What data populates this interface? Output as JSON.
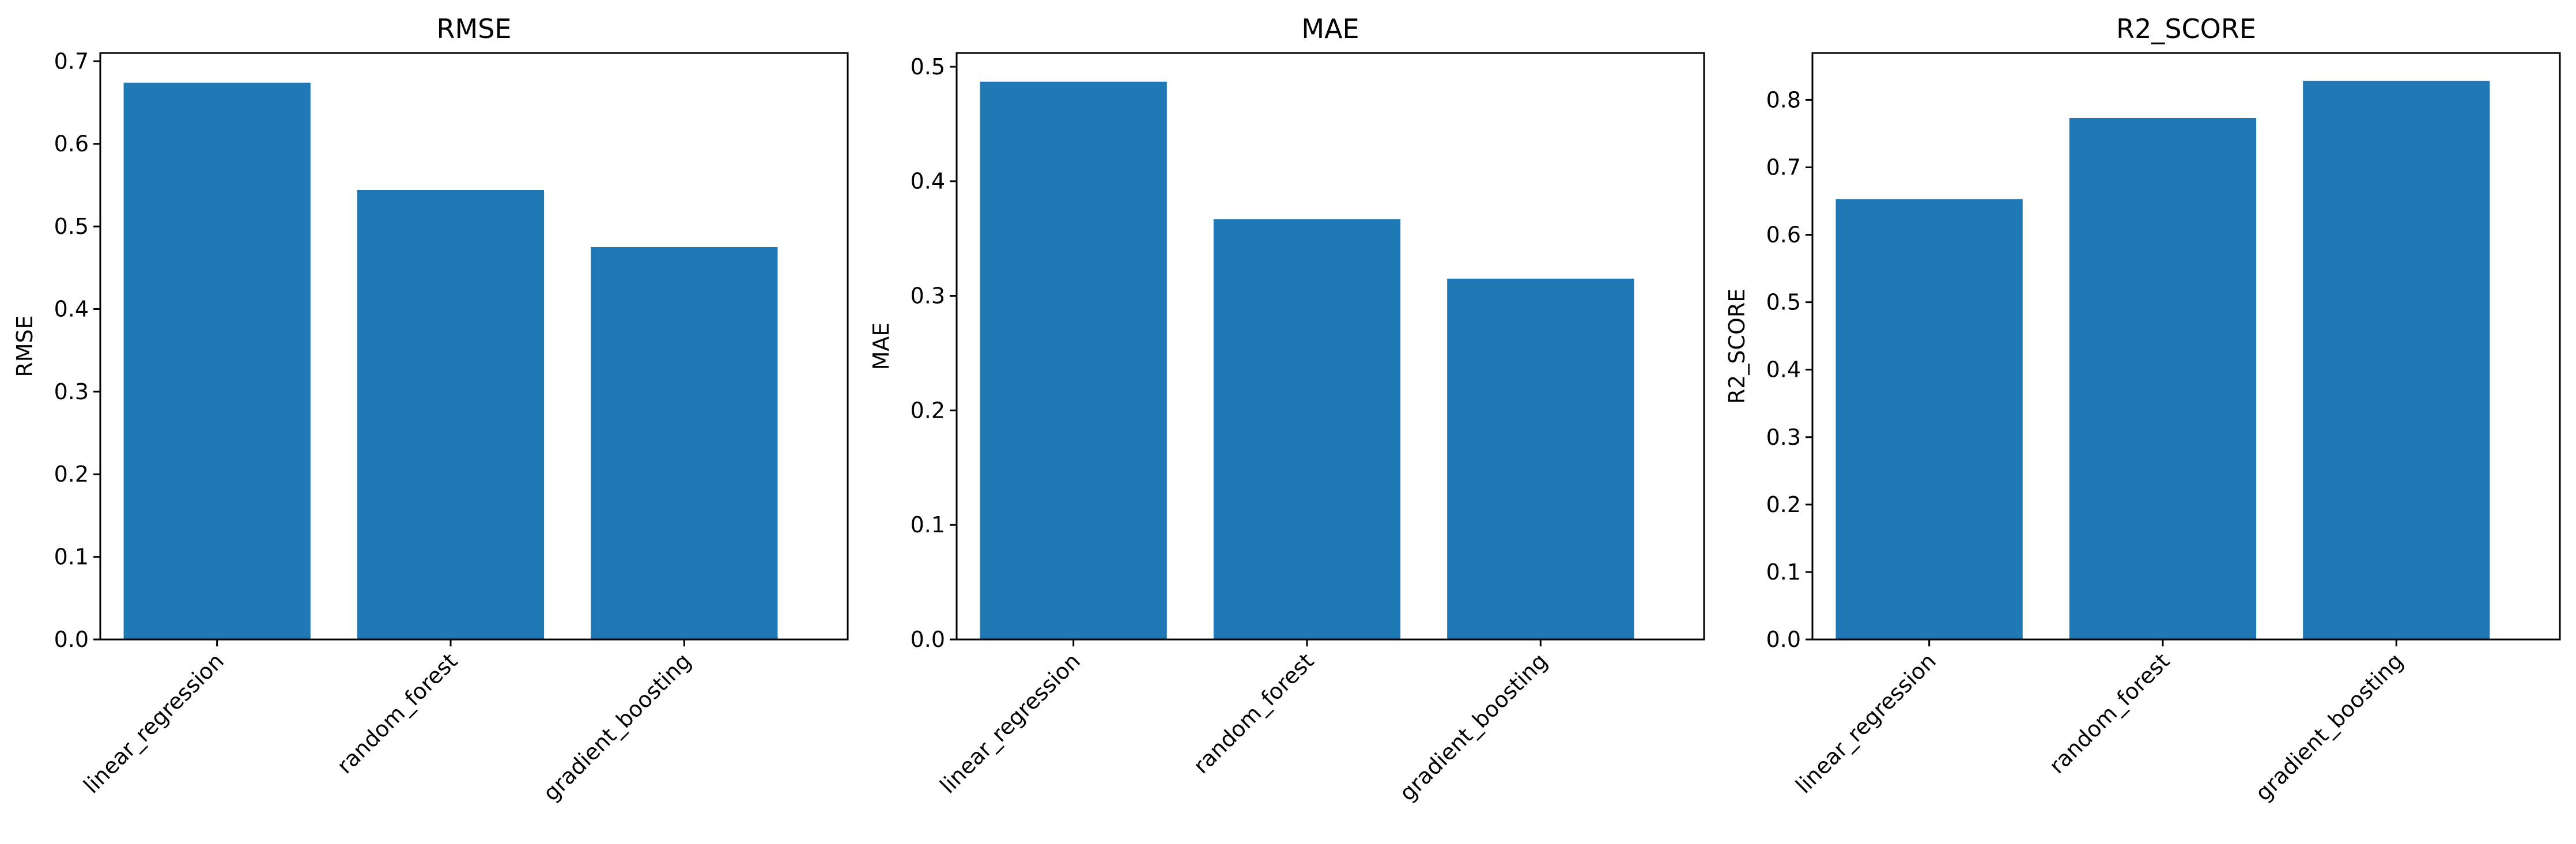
{
  "chart_data": [
    {
      "type": "bar",
      "title": "RMSE",
      "ylabel": "RMSE",
      "xlabel": "",
      "categories": [
        "linear_regression",
        "random_forest",
        "gradient_boosting"
      ],
      "values": [
        0.674,
        0.544,
        0.475
      ],
      "ylim": [
        0,
        0.71
      ],
      "yticks": [
        0.0,
        0.1,
        0.2,
        0.3,
        0.4,
        0.5,
        0.6,
        0.7
      ],
      "ytick_labels": [
        "0.0",
        "0.1",
        "0.2",
        "0.3",
        "0.4",
        "0.5",
        "0.6",
        "0.7"
      ],
      "bar_color": "#1f77b4",
      "grid": false
    },
    {
      "type": "bar",
      "title": "MAE",
      "ylabel": "MAE",
      "xlabel": "",
      "categories": [
        "linear_regression",
        "random_forest",
        "gradient_boosting"
      ],
      "values": [
        0.487,
        0.367,
        0.315
      ],
      "ylim": [
        0,
        0.512
      ],
      "yticks": [
        0.0,
        0.1,
        0.2,
        0.3,
        0.4,
        0.5
      ],
      "ytick_labels": [
        "0.0",
        "0.1",
        "0.2",
        "0.3",
        "0.4",
        "0.5"
      ],
      "bar_color": "#1f77b4",
      "grid": false
    },
    {
      "type": "bar",
      "title": "R2_SCORE",
      "ylabel": "R2_SCORE",
      "xlabel": "",
      "categories": [
        "linear_regression",
        "random_forest",
        "gradient_boosting"
      ],
      "values": [
        0.653,
        0.773,
        0.828
      ],
      "ylim": [
        0,
        0.8695
      ],
      "yticks": [
        0.0,
        0.1,
        0.2,
        0.3,
        0.4,
        0.5,
        0.6,
        0.7,
        0.8
      ],
      "ytick_labels": [
        "0.0",
        "0.1",
        "0.2",
        "0.3",
        "0.4",
        "0.5",
        "0.6",
        "0.7",
        "0.8"
      ],
      "bar_color": "#1f77b4",
      "grid": false
    }
  ]
}
